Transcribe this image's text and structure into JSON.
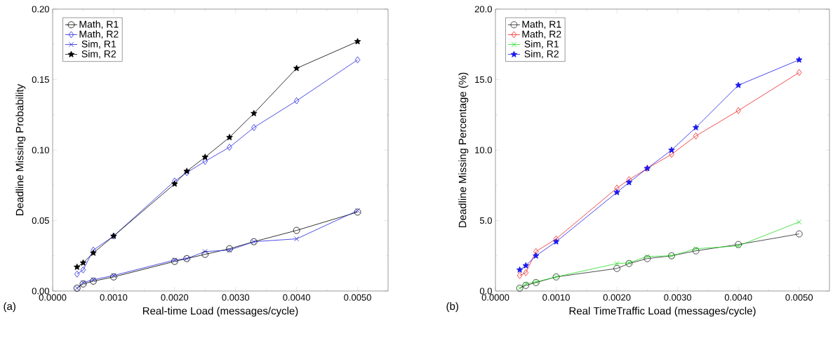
{
  "chart_data": [
    {
      "type": "line",
      "xlabel": "Real-time Load (messages/cycle)",
      "ylabel": "Deadline Missing Probability",
      "annotations": [
        "(a)"
      ],
      "legend": "top left",
      "grid": false,
      "x": [
        0.0004,
        0.0005,
        0.000667,
        0.001,
        0.002,
        0.0022,
        0.0025,
        0.0029,
        0.0033,
        0.004,
        0.005
      ],
      "xlim": [
        0,
        0.0055
      ],
      "xticks": [
        {
          "value": 0,
          "label": "0.0000"
        },
        {
          "value": 0.001,
          "label": "0.0010"
        },
        {
          "value": 0.002,
          "label": "0.0020"
        },
        {
          "value": 0.003,
          "label": "0.0030"
        },
        {
          "value": 0.004,
          "label": "0.0040"
        },
        {
          "value": 0.005,
          "label": "0.0050"
        }
      ],
      "ylim": [
        0,
        0.2
      ],
      "yticks": [
        {
          "value": 0,
          "label": "0.00"
        },
        {
          "value": 0.05,
          "label": "0.05"
        },
        {
          "value": 0.1,
          "label": "0.10"
        },
        {
          "value": 0.15,
          "label": "0.15"
        },
        {
          "value": 0.2,
          "label": "0.20"
        }
      ],
      "series": [
        {
          "name": "Math, R1",
          "color": "#000000",
          "marker": "circle",
          "values": [
            0.002,
            0.005,
            0.007,
            0.01,
            0.021,
            0.023,
            0.026,
            0.03,
            0.035,
            0.043,
            0.056
          ]
        },
        {
          "name": "Math, R2",
          "color": "#2222dd",
          "marker": "diamond",
          "values": [
            0.012,
            0.015,
            0.029,
            0.039,
            0.078,
            0.084,
            0.092,
            0.102,
            0.116,
            0.135,
            0.164
          ]
        },
        {
          "name": "Sim, R1",
          "color": "#2222dd",
          "marker": "cross",
          "values": [
            0.002,
            0.006,
            0.008,
            0.011,
            0.022,
            0.023,
            0.028,
            0.029,
            0.035,
            0.037,
            0.057
          ]
        },
        {
          "name": "Sim, R2",
          "color": "#000000",
          "marker": "star",
          "values": [
            0.017,
            0.02,
            0.027,
            0.039,
            0.076,
            0.085,
            0.095,
            0.109,
            0.126,
            0.158,
            0.177
          ]
        }
      ]
    },
    {
      "type": "line",
      "xlabel": "Real TimeTraffic Load (messages/cycle)",
      "ylabel": "Deadline Missing Percentage (%)",
      "annotations": [
        "(b)"
      ],
      "legend": "top left",
      "grid": false,
      "x": [
        0.0004,
        0.0005,
        0.000667,
        0.001,
        0.002,
        0.0022,
        0.0025,
        0.0029,
        0.0033,
        0.004,
        0.005
      ],
      "xlim": [
        0,
        0.0055
      ],
      "xticks": [
        {
          "value": 0,
          "label": "0.0000"
        },
        {
          "value": 0.001,
          "label": "0.0010"
        },
        {
          "value": 0.002,
          "label": "0.0020"
        },
        {
          "value": 0.003,
          "label": "0.0030"
        },
        {
          "value": 0.004,
          "label": "0.0040"
        },
        {
          "value": 0.005,
          "label": "0.0050"
        }
      ],
      "ylim": [
        0,
        20
      ],
      "yticks": [
        {
          "value": 0,
          "label": "0.0"
        },
        {
          "value": 5,
          "label": "5.0"
        },
        {
          "value": 10,
          "label": "10.0"
        },
        {
          "value": 15,
          "label": "15.0"
        },
        {
          "value": 20,
          "label": "20.0"
        }
      ],
      "series": [
        {
          "name": "Math, R1",
          "color": "#222222",
          "marker": "circle",
          "values": [
            0.2,
            0.4,
            0.6,
            1.0,
            1.6,
            1.95,
            2.3,
            2.5,
            2.85,
            3.3,
            4.05
          ]
        },
        {
          "name": "Math, R2",
          "color": "#ee2222",
          "marker": "diamond",
          "values": [
            1.1,
            1.3,
            2.8,
            3.7,
            7.3,
            7.9,
            8.7,
            9.7,
            11.0,
            12.8,
            15.5
          ]
        },
        {
          "name": "Sim, R1",
          "color": "#22dd22",
          "marker": "cross",
          "values": [
            0.2,
            0.5,
            0.65,
            1.0,
            1.95,
            2.0,
            2.45,
            2.5,
            3.0,
            3.2,
            4.9
          ]
        },
        {
          "name": "Sim, R2",
          "color": "#1a1aee",
          "marker": "star",
          "values": [
            1.5,
            1.8,
            2.5,
            3.5,
            7.0,
            7.7,
            8.7,
            10.0,
            11.6,
            14.6,
            16.4
          ]
        }
      ]
    }
  ]
}
